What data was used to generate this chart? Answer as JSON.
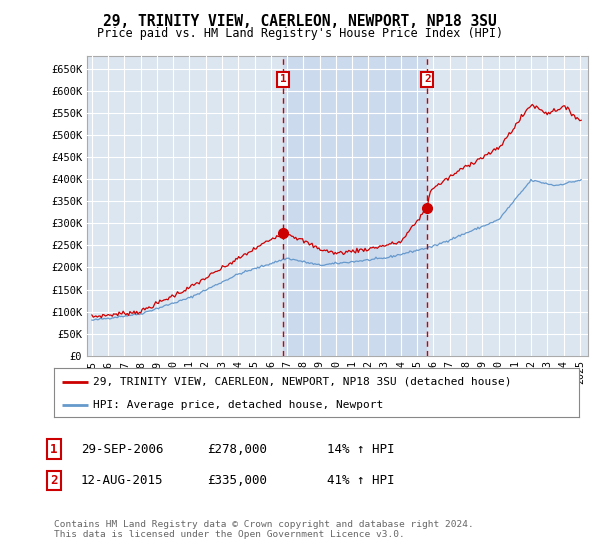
{
  "title": "29, TRINITY VIEW, CAERLEON, NEWPORT, NP18 3SU",
  "subtitle": "Price paid vs. HM Land Registry's House Price Index (HPI)",
  "ylabel_ticks": [
    "£0",
    "£50K",
    "£100K",
    "£150K",
    "£200K",
    "£250K",
    "£300K",
    "£350K",
    "£400K",
    "£450K",
    "£500K",
    "£550K",
    "£600K",
    "£650K"
  ],
  "ylim": [
    0,
    680000
  ],
  "background_color": "#ffffff",
  "plot_bg_color": "#dce6f1",
  "shade_color": "#c8d8ee",
  "grid_color": "#ffffff",
  "sale1_date": 2006.75,
  "sale1_price": 278000,
  "sale2_date": 2015.62,
  "sale2_price": 335000,
  "legend_entries": [
    "29, TRINITY VIEW, CAERLEON, NEWPORT, NP18 3SU (detached house)",
    "HPI: Average price, detached house, Newport"
  ],
  "legend_colors": [
    "#cc0000",
    "#6699cc"
  ],
  "table_rows": [
    [
      "1",
      "29-SEP-2006",
      "£278,000",
      "14% ↑ HPI"
    ],
    [
      "2",
      "12-AUG-2015",
      "£335,000",
      "41% ↑ HPI"
    ]
  ],
  "footnote": "Contains HM Land Registry data © Crown copyright and database right 2024.\nThis data is licensed under the Open Government Licence v3.0.",
  "red_color": "#cc0000",
  "blue_color": "#6699cc",
  "fig_width": 6.0,
  "fig_height": 5.6,
  "dpi": 100
}
